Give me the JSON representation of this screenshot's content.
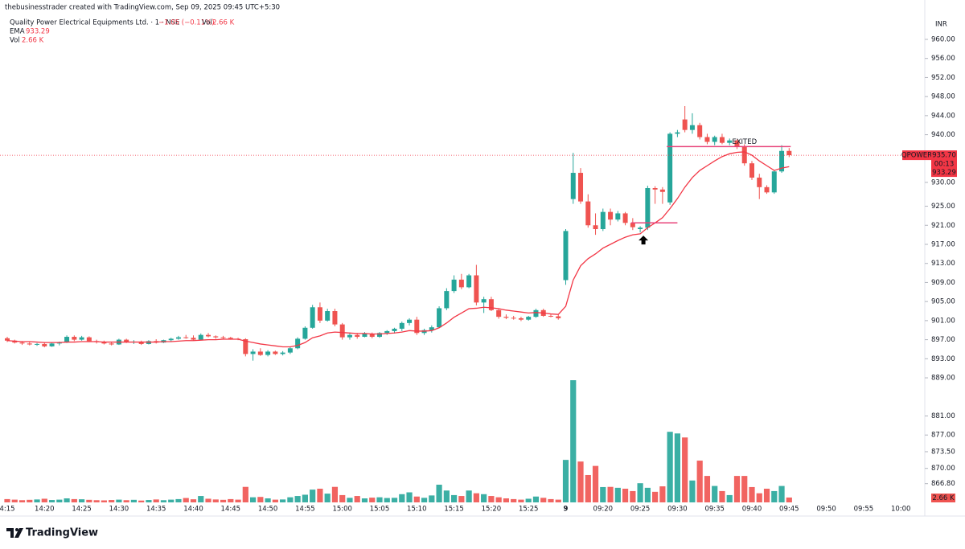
{
  "header": {
    "attribution": "thebusinesstrader created with TradingView.com, Sep 09, 2025 09:45 UTC+5:30",
    "symbol": "Quality Power Electrical Equipments Ltd. · 1 · NSE",
    "change": "−1.05 (−0.11%)",
    "vol_label": "Vol",
    "vol_value": "2.66 K",
    "ema_label": "EMA",
    "ema_value": "933.29",
    "vol2_label": "Vol",
    "vol2_value": "2.66 K"
  },
  "footer": {
    "brand": "TradingView"
  },
  "chart_data": {
    "type": "candlestick",
    "currency": "INR",
    "symbol_tag": "QPOWER",
    "price_tag": {
      "value": 935.7,
      "label": "935.70"
    },
    "countdown": "00:13",
    "ema_tag": 933.29,
    "volume_tag": "2.66 K",
    "up_color": "#26a69a",
    "down_color": "#ef5350",
    "ema_color": "#f23645",
    "grid": false,
    "annotation": "EXITED",
    "exit_level": 937.5,
    "entry_level": 921.5,
    "ylim": [
      862.87,
      968.26
    ],
    "yticks": [
      {
        "value": 960,
        "label": "960.00"
      },
      {
        "value": 956,
        "label": "956.00"
      },
      {
        "value": 952,
        "label": "952.00"
      },
      {
        "value": 948,
        "label": "948.00"
      },
      {
        "value": 944,
        "label": "944.00"
      },
      {
        "value": 940,
        "label": "940.00"
      },
      {
        "value": 930,
        "label": "930.00"
      },
      {
        "value": 925,
        "label": "925.00"
      },
      {
        "value": 921,
        "label": "921.00"
      },
      {
        "value": 917,
        "label": "917.00"
      },
      {
        "value": 913,
        "label": "913.00"
      },
      {
        "value": 909,
        "label": "909.00"
      },
      {
        "value": 905,
        "label": "905.00"
      },
      {
        "value": 901,
        "label": "901.00"
      },
      {
        "value": 897,
        "label": "897.00"
      },
      {
        "value": 893,
        "label": "893.00"
      },
      {
        "value": 889,
        "label": "889.00"
      },
      {
        "value": 881,
        "label": "881.00"
      },
      {
        "value": 877,
        "label": "877.00"
      },
      {
        "value": 873.5,
        "label": "873.50"
      },
      {
        "value": 870,
        "label": "870.00"
      },
      {
        "value": 866.8,
        "label": "866.80"
      }
    ],
    "categories": [
      "4:15",
      null,
      null,
      null,
      null,
      "14:20",
      null,
      null,
      null,
      null,
      "14:25",
      null,
      null,
      null,
      null,
      "14:30",
      null,
      null,
      null,
      null,
      "14:35",
      null,
      null,
      null,
      null,
      "14:40",
      null,
      null,
      null,
      null,
      "14:45",
      null,
      null,
      null,
      null,
      "14:50",
      null,
      null,
      null,
      null,
      "14:55",
      null,
      null,
      null,
      null,
      "15:00",
      null,
      null,
      null,
      null,
      "15:05",
      null,
      null,
      null,
      null,
      "15:10",
      null,
      null,
      null,
      null,
      "15:15",
      null,
      null,
      null,
      null,
      "15:20",
      null,
      null,
      null,
      null,
      "15:25",
      null,
      null,
      null,
      null,
      "9",
      null,
      null,
      null,
      null,
      "09:20",
      null,
      null,
      null,
      null,
      "09:25",
      null,
      null,
      null,
      null,
      "09:30",
      null,
      null,
      null,
      null,
      "09:35",
      null,
      null,
      null,
      null,
      "09:40",
      null,
      null,
      null,
      null,
      "09:45",
      null,
      null,
      null,
      null,
      "09:50",
      null,
      null,
      null,
      null,
      "09:55",
      null,
      null,
      null,
      null,
      "10:00"
    ],
    "open": [
      897.3,
      896.8,
      896.4,
      896.2,
      896.0,
      896.1,
      895.6,
      896.2,
      896.4,
      897.6,
      897.0,
      897.5,
      896.7,
      896.5,
      896.2,
      896.0,
      897.0,
      896.5,
      896.6,
      896.1,
      896.7,
      896.4,
      896.9,
      897.2,
      897.5,
      897.4,
      897.0,
      898.0,
      897.7,
      897.5,
      897.4,
      897.2,
      897.1,
      894.0,
      894.5,
      893.8,
      894.5,
      894.0,
      894.3,
      895.2,
      897.2,
      899.5,
      903.8,
      901.0,
      903.0,
      900.2,
      897.5,
      898.0,
      897.6,
      898.2,
      897.6,
      898.4,
      898.8,
      899.3,
      900.5,
      901.2,
      898.4,
      899.0,
      899.6,
      903.6,
      907.2,
      909.6,
      908.0,
      910.5,
      904.8,
      905.5,
      903.2,
      901.8,
      901.6,
      901.5,
      901.2,
      901.8,
      903.2,
      902.0,
      901.9,
      909.5,
      926.5,
      932.0,
      926.0,
      921.0,
      920.2,
      923.8,
      922.2,
      923.5,
      921.5,
      920.2,
      920.5,
      928.8,
      928.5,
      925.8,
      940.2,
      943.2,
      941.0,
      942.0,
      939.5,
      938.5,
      939.5,
      938.3,
      938.8,
      937.5,
      934.0,
      931.0,
      929.0,
      927.9,
      932.3,
      936.6,
      null,
      null,
      null,
      null,
      null,
      null,
      null,
      null,
      null,
      null,
      null,
      null,
      null,
      null,
      null
    ],
    "high": [
      897.6,
      897.0,
      896.7,
      896.5,
      896.3,
      896.4,
      896.5,
      896.6,
      897.9,
      897.9,
      897.8,
      897.7,
      897.0,
      896.8,
      896.6,
      897.2,
      897.2,
      896.9,
      896.8,
      896.9,
      897.1,
      897.0,
      897.4,
      897.8,
      898.0,
      897.9,
      898.3,
      898.4,
      897.9,
      897.8,
      897.6,
      897.4,
      897.3,
      895.0,
      895.2,
      894.8,
      894.7,
      894.6,
      895.5,
      897.5,
      899.8,
      904.3,
      904.8,
      903.5,
      903.5,
      900.5,
      898.5,
      898.4,
      898.6,
      898.5,
      898.6,
      899.0,
      899.5,
      900.8,
      901.5,
      901.8,
      899.3,
      900.0,
      904.0,
      907.8,
      910.5,
      910.8,
      910.8,
      912.7,
      906.0,
      906.0,
      903.6,
      902.3,
      902.0,
      901.8,
      902.0,
      903.5,
      903.5,
      902.4,
      902.2,
      920.2,
      936.2,
      933.0,
      927.5,
      923.5,
      924.5,
      924.5,
      924.0,
      923.8,
      922.5,
      920.8,
      929.3,
      929.2,
      929.0,
      940.5,
      941.0,
      946.0,
      944.5,
      942.5,
      940.2,
      939.8,
      940.2,
      939.2,
      939.0,
      938.0,
      934.5,
      931.8,
      929.4,
      932.5,
      937.8,
      937.2,
      null,
      null,
      null,
      null,
      null,
      null,
      null,
      null,
      null,
      null,
      null,
      null,
      null,
      null,
      null
    ],
    "low": [
      896.5,
      896.2,
      895.9,
      895.8,
      895.7,
      895.4,
      895.5,
      895.8,
      896.3,
      896.7,
      896.8,
      896.5,
      896.2,
      896.0,
      895.8,
      895.9,
      896.3,
      896.1,
      895.9,
      896.0,
      896.2,
      896.3,
      896.6,
      897.0,
      897.2,
      896.8,
      896.9,
      897.5,
      897.2,
      897.1,
      897.0,
      896.9,
      893.5,
      892.6,
      893.6,
      893.5,
      893.8,
      893.7,
      894.0,
      895.0,
      897.0,
      899.3,
      900.5,
      900.8,
      899.8,
      897.0,
      897.0,
      897.2,
      897.5,
      897.3,
      897.4,
      898.0,
      898.3,
      898.8,
      900.0,
      898.0,
      898.0,
      898.5,
      899.4,
      903.2,
      906.8,
      907.6,
      907.8,
      904.2,
      902.6,
      903.0,
      901.4,
      901.3,
      901.2,
      900.9,
      901.0,
      901.6,
      901.8,
      901.7,
      901.2,
      908.5,
      925.5,
      925.5,
      920.5,
      919.0,
      919.8,
      921.0,
      921.8,
      921.0,
      920.0,
      919.5,
      920.0,
      925.5,
      925.5,
      925.3,
      939.5,
      940.5,
      940.2,
      939.0,
      938.0,
      937.8,
      938.0,
      937.8,
      937.0,
      933.5,
      930.5,
      926.5,
      927.6,
      927.6,
      932.0,
      935.3,
      null,
      null,
      null,
      null,
      null,
      null,
      null,
      null,
      null,
      null,
      null,
      null,
      null,
      null,
      null
    ],
    "close": [
      896.8,
      896.4,
      896.2,
      896.0,
      896.1,
      895.6,
      896.2,
      896.4,
      897.6,
      897.0,
      897.5,
      896.7,
      896.5,
      896.2,
      896.0,
      897.0,
      896.5,
      896.6,
      896.1,
      896.7,
      896.4,
      896.9,
      897.2,
      897.5,
      897.4,
      897.0,
      898.0,
      897.7,
      897.5,
      897.4,
      897.2,
      897.1,
      894.0,
      894.5,
      893.8,
      894.5,
      894.0,
      894.3,
      895.2,
      897.2,
      899.5,
      903.8,
      901.0,
      903.0,
      900.2,
      897.5,
      898.0,
      897.6,
      898.2,
      897.6,
      898.4,
      898.8,
      899.3,
      900.5,
      901.2,
      898.4,
      899.0,
      899.6,
      903.6,
      907.2,
      909.6,
      908.0,
      910.5,
      904.8,
      905.5,
      903.2,
      901.8,
      901.6,
      901.5,
      901.2,
      901.8,
      903.2,
      902.0,
      901.9,
      901.5,
      919.8,
      932.0,
      926.0,
      921.0,
      920.2,
      923.8,
      922.2,
      923.5,
      921.5,
      920.6,
      920.5,
      928.8,
      928.5,
      928.0,
      940.2,
      940.5,
      941.0,
      942.0,
      939.5,
      938.5,
      939.5,
      938.3,
      938.8,
      937.5,
      934.0,
      931.0,
      929.0,
      927.9,
      932.3,
      936.6,
      935.7,
      null,
      null,
      null,
      null,
      null,
      null,
      null,
      null,
      null,
      null,
      null,
      null,
      null,
      null,
      null
    ],
    "ema": [
      896.8,
      896.7,
      896.6,
      896.6,
      896.5,
      896.4,
      896.4,
      896.4,
      896.5,
      896.5,
      896.6,
      896.6,
      896.6,
      896.5,
      896.5,
      896.5,
      896.5,
      896.5,
      896.5,
      896.5,
      896.5,
      896.6,
      896.6,
      896.7,
      896.8,
      896.8,
      896.9,
      897.0,
      897.0,
      897.1,
      897.1,
      897.1,
      896.7,
      896.4,
      896.1,
      895.9,
      895.7,
      895.5,
      895.5,
      895.8,
      896.4,
      897.4,
      897.8,
      898.4,
      898.6,
      898.5,
      898.4,
      898.3,
      898.3,
      898.2,
      898.2,
      898.3,
      898.4,
      898.6,
      898.9,
      898.8,
      898.8,
      898.9,
      899.5,
      900.5,
      901.7,
      902.6,
      903.5,
      903.6,
      903.8,
      903.7,
      903.5,
      903.2,
      903.0,
      902.8,
      902.6,
      902.7,
      902.6,
      902.4,
      902.3,
      904.0,
      909.5,
      912.5,
      914.0,
      915.0,
      916.2,
      917.0,
      917.8,
      918.5,
      919.0,
      919.2,
      920.5,
      921.5,
      922.6,
      924.5,
      926.6,
      929.0,
      931.0,
      932.5,
      933.5,
      934.5,
      935.4,
      936.0,
      936.3,
      936.4,
      935.7,
      934.5,
      933.5,
      932.5,
      933.0,
      933.29,
      null,
      null,
      null,
      null,
      null,
      null,
      null,
      null,
      null,
      null,
      null,
      null,
      null,
      null,
      null
    ],
    "volume": [
      1.8,
      1.5,
      1.2,
      1.4,
      1.6,
      2.0,
      1.3,
      1.5,
      2.2,
      1.8,
      1.7,
      1.4,
      1.2,
      1.1,
      1.3,
      1.5,
      1.2,
      1.4,
      1.0,
      1.3,
      1.6,
      1.2,
      1.5,
      1.8,
      2.4,
      1.7,
      3.5,
      2.0,
      1.6,
      1.4,
      1.8,
      1.5,
      8.5,
      2.8,
      3.0,
      2.2,
      1.5,
      1.6,
      2.8,
      3.5,
      4.2,
      7.0,
      7.5,
      4.8,
      8.5,
      4.0,
      2.5,
      3.5,
      2.2,
      2.6,
      2.8,
      2.4,
      2.5,
      4.5,
      5.5,
      3.2,
      2.5,
      3.8,
      9.7,
      6.5,
      4.0,
      3.5,
      6.5,
      5.0,
      4.5,
      3.5,
      2.8,
      2.2,
      1.8,
      1.5,
      2.0,
      3.2,
      2.5,
      1.8,
      1.5,
      23.3,
      67,
      22.4,
      15,
      20,
      8.4,
      8.5,
      8.0,
      7.5,
      6.2,
      10.5,
      8.0,
      5.8,
      8.8,
      38.7,
      37.8,
      35.6,
      12,
      22.9,
      14.5,
      9.0,
      6.2,
      4.0,
      14.5,
      14.5,
      8.4,
      5.0,
      7.5,
      6.2,
      9.0,
      2.66,
      null,
      null,
      null,
      null,
      null,
      null,
      null,
      null,
      null,
      null,
      null,
      null,
      null,
      null,
      null
    ]
  }
}
